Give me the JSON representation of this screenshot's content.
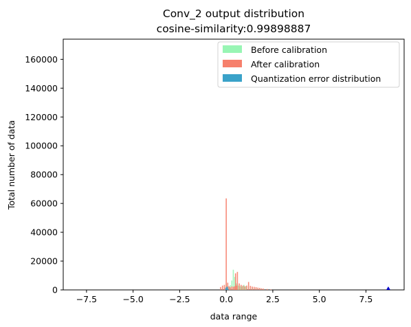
{
  "chart_data": {
    "type": "bar",
    "title": "Conv_2 output distribution",
    "subtitle": "cosine-similarity:0.99898887",
    "xlabel": "data range",
    "ylabel": "Total number of data",
    "xlim": [
      -8.75,
      9.55
    ],
    "ylim": [
      0,
      174000
    ],
    "xticks": [
      -7.5,
      -5.0,
      -2.5,
      0.0,
      2.5,
      5.0,
      7.5
    ],
    "xtick_labels": [
      "−7.5",
      "−5.0",
      "−2.5",
      "0.0",
      "2.5",
      "5.0",
      "7.5"
    ],
    "yticks": [
      0,
      20000,
      40000,
      60000,
      80000,
      100000,
      120000,
      140000,
      160000
    ],
    "ytick_labels": [
      "0",
      "20000",
      "40000",
      "60000",
      "80000",
      "100000",
      "120000",
      "140000",
      "160000"
    ],
    "grid": false,
    "legend_position": "top-right",
    "series": [
      {
        "name": "Before calibration",
        "color": "#98f5b4",
        "x": [
          0.0,
          0.08,
          0.15,
          0.22,
          0.3,
          0.38,
          0.46,
          0.55,
          0.65,
          0.75,
          0.85,
          0.95,
          1.05,
          1.2,
          1.4,
          1.6,
          1.8,
          2.0
        ],
        "values": [
          4200,
          2500,
          1800,
          3200,
          6500,
          14000,
          9000,
          4500,
          3000,
          2600,
          2400,
          3500,
          2600,
          2200,
          1800,
          1400,
          900,
          500
        ]
      },
      {
        "name": "After calibration",
        "color": "#f6806c",
        "x": [
          -0.3,
          -0.2,
          -0.1,
          -0.03,
          0.0,
          0.02,
          0.08,
          0.15,
          0.22,
          0.3,
          0.38,
          0.45,
          0.5,
          0.55,
          0.6,
          0.7,
          0.8,
          0.9,
          1.0,
          1.1,
          1.2,
          1.3,
          1.4,
          1.5,
          1.6,
          1.7,
          1.8,
          1.9,
          2.0,
          2.2,
          2.4
        ],
        "values": [
          2000,
          3000,
          3500,
          1500,
          63500,
          1200,
          5000,
          2500,
          1800,
          2500,
          2200,
          2500,
          11500,
          3000,
          12500,
          4500,
          3500,
          3000,
          2500,
          3000,
          5500,
          2800,
          2300,
          2100,
          1900,
          1600,
          1400,
          1100,
          900,
          600,
          300
        ]
      },
      {
        "name": "Quantization error distribution",
        "color": "#3aa2c9",
        "x": [
          -0.05,
          0.0,
          0.05,
          0.1
        ],
        "values": [
          300,
          1500,
          2200,
          600
        ]
      }
    ],
    "annotations": [
      {
        "type": "marker",
        "x": 8.7,
        "y": 0,
        "color": "#0000cc"
      }
    ]
  }
}
